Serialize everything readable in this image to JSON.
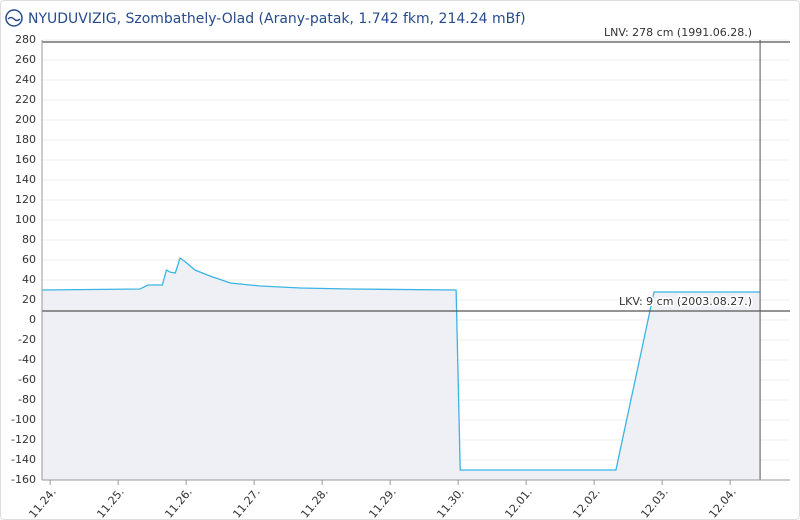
{
  "chart_data": {
    "type": "area",
    "title": "NYUDUVIZIG, Szombathely-Olad (Arany-patak, 1.742 fkm, 214.24 mBf)",
    "x": [
      -0.12,
      1.32,
      1.44,
      1.65,
      1.71,
      1.76,
      1.84,
      1.91,
      1.99,
      2.13,
      2.35,
      2.65,
      3.09,
      3.68,
      4.41,
      5.97,
      6.03,
      8.32,
      8.88,
      10.44
    ],
    "series": [
      {
        "color": "#3cb4e5",
        "fill": "#eef0f6",
        "values": [
          30,
          31,
          35,
          35,
          50,
          48,
          47,
          62,
          58,
          50,
          44,
          37,
          34,
          32,
          31,
          30,
          -150,
          -150,
          28,
          28
        ]
      }
    ],
    "xlim": [
      -0.12,
      10.88
    ],
    "xticks": [
      {
        "value": 0,
        "label": "11.24."
      },
      {
        "value": 1,
        "label": "11.25."
      },
      {
        "value": 2,
        "label": "11.26."
      },
      {
        "value": 3,
        "label": "11.27."
      },
      {
        "value": 4,
        "label": "11.28."
      },
      {
        "value": 5,
        "label": "11.29."
      },
      {
        "value": 6,
        "label": "11.30."
      },
      {
        "value": 7,
        "label": "12.01."
      },
      {
        "value": 8,
        "label": "12.02."
      },
      {
        "value": 9,
        "label": "12.03."
      },
      {
        "value": 10,
        "label": "12.04."
      }
    ],
    "ylim": [
      -160,
      280
    ],
    "yticks": [
      -160,
      -140,
      -120,
      -100,
      -80,
      -60,
      -40,
      -20,
      0,
      20,
      40,
      60,
      80,
      100,
      120,
      140,
      160,
      180,
      200,
      220,
      240,
      260,
      280
    ],
    "grid": true,
    "reference_lines": [
      {
        "value": 278,
        "label": "LNV: 278 cm (1991.06.28.)"
      },
      {
        "value": 9,
        "label": "LKV: 9 cm (2003.08.27.)"
      }
    ]
  }
}
